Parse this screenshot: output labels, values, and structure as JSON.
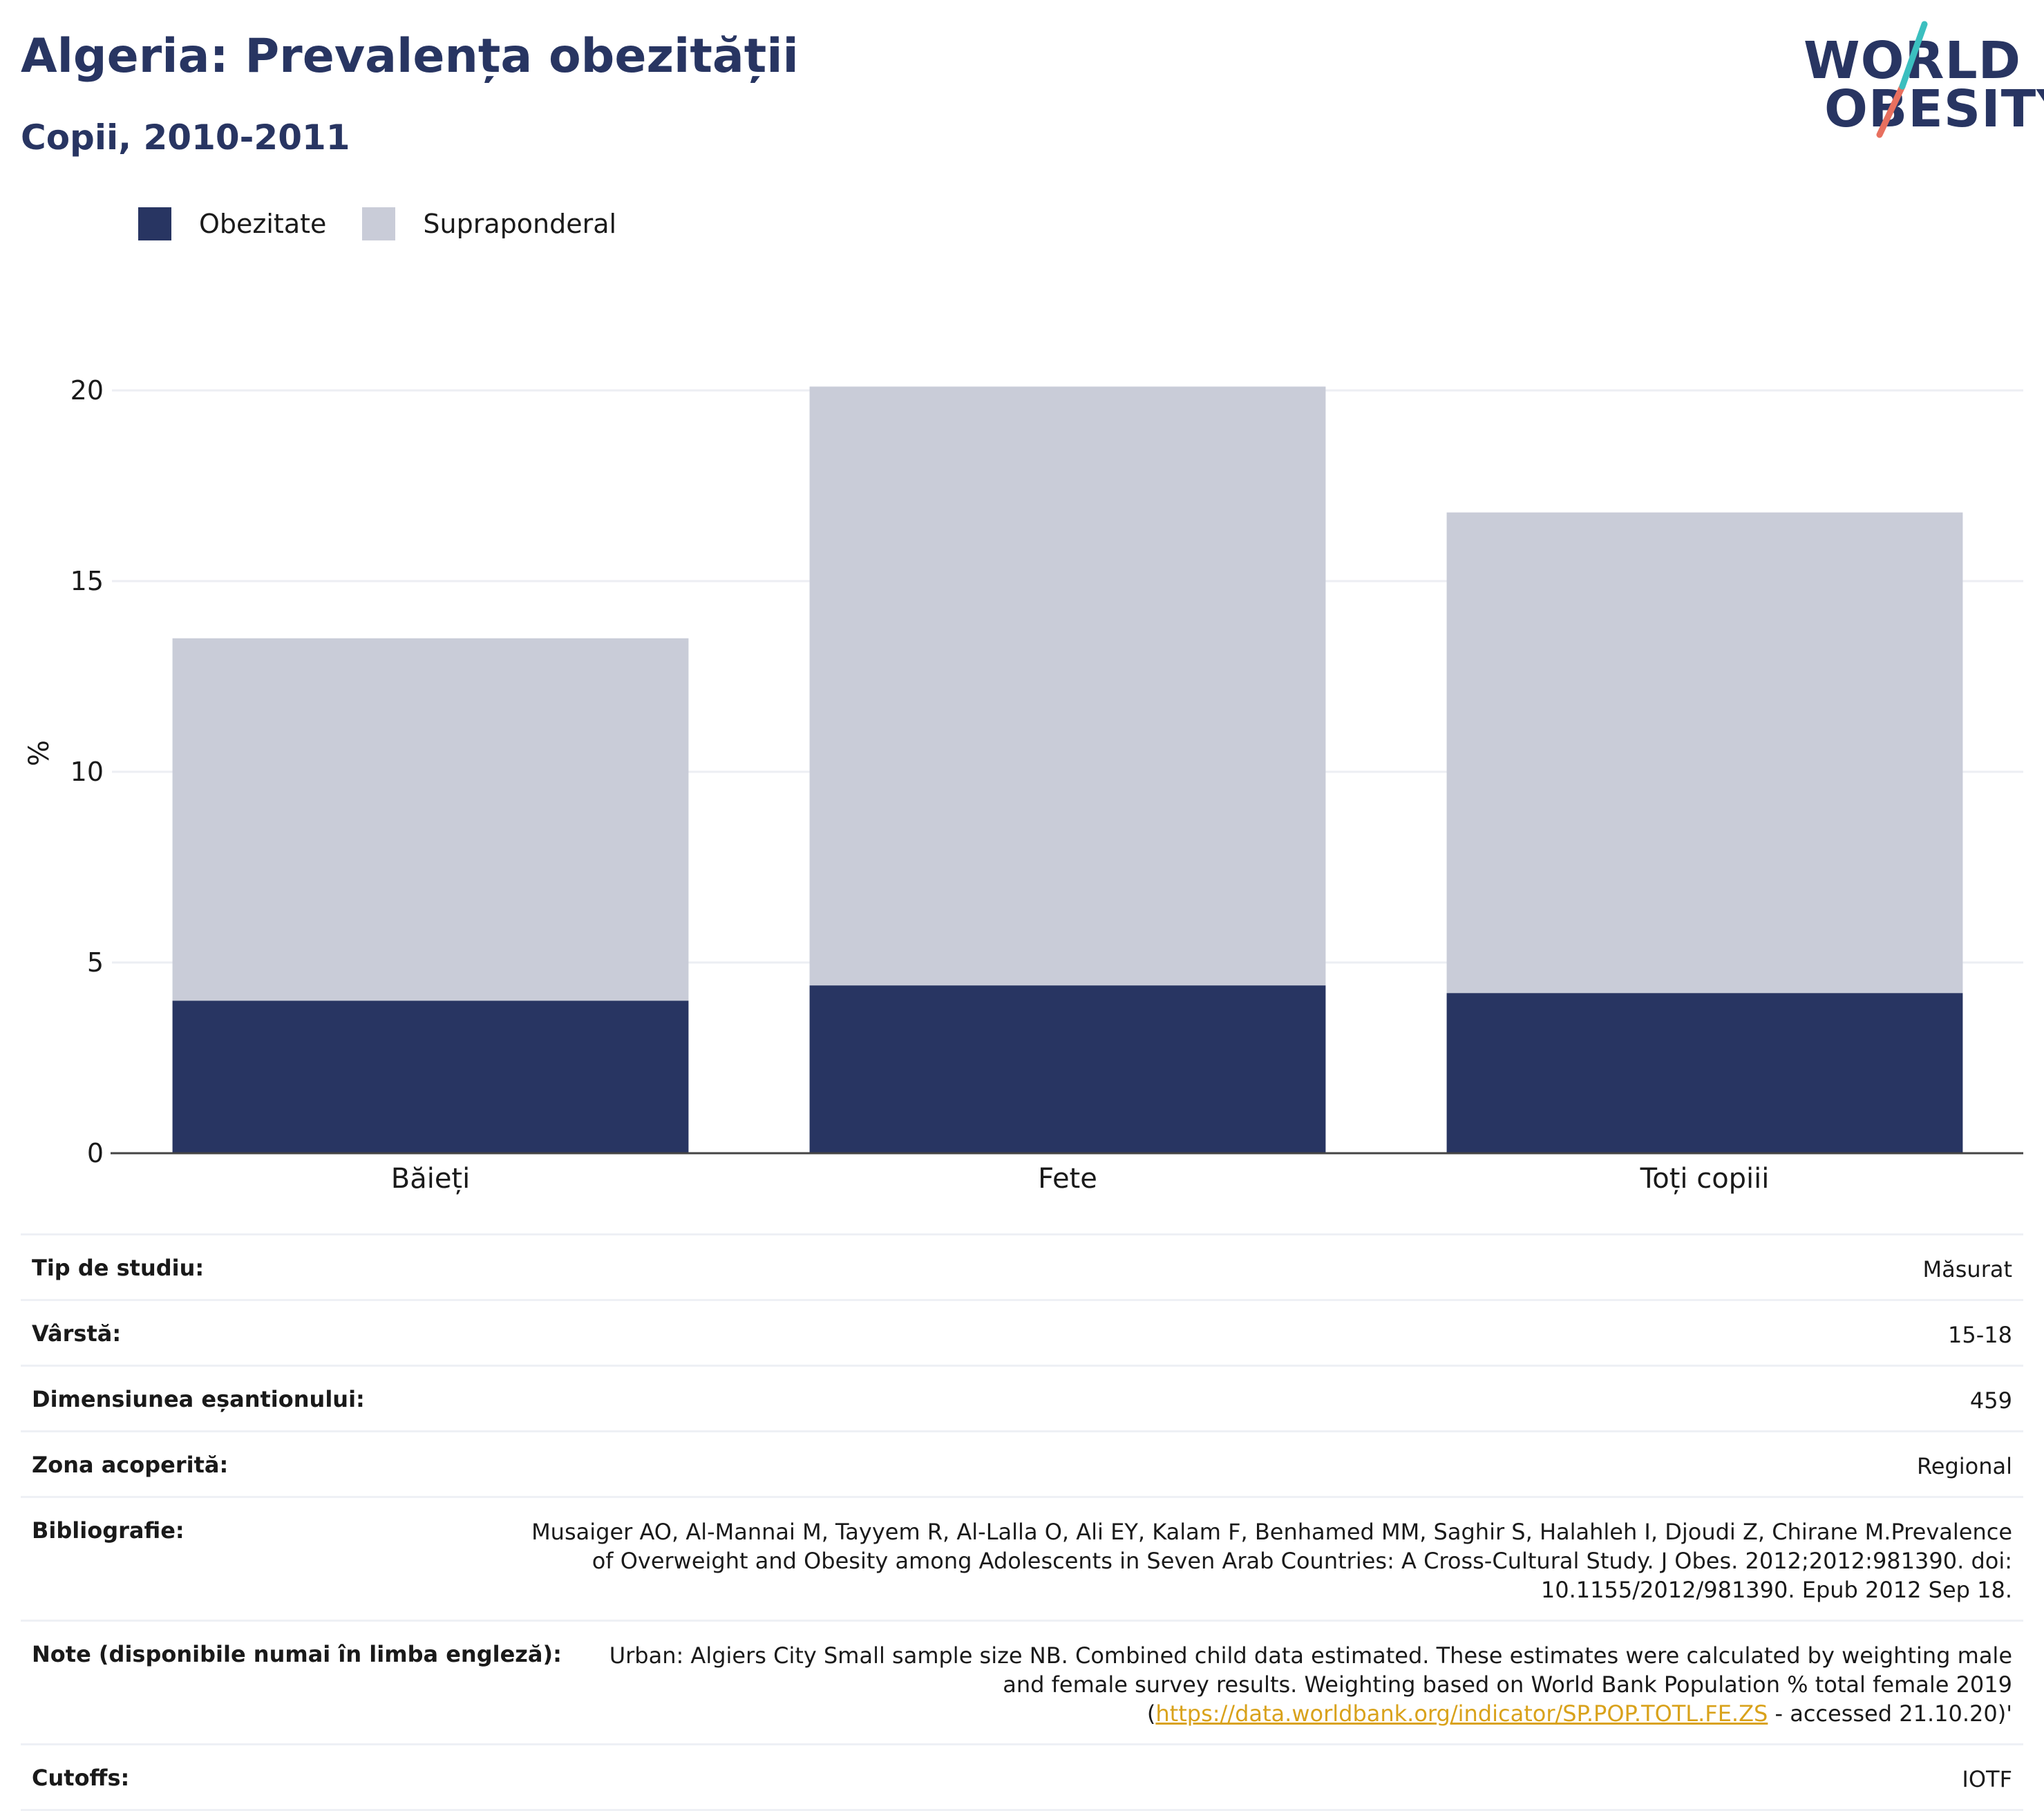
{
  "header": {
    "title": "Algeria: Prevalența obezității",
    "subtitle": "Copii, 2010-2011"
  },
  "logo": {
    "line1": "WORLD",
    "line2": "OBESITY",
    "colors": {
      "slash_top": "#3bbfbf",
      "slash_bottom": "#e8705f",
      "text": "#283562"
    }
  },
  "legend": [
    {
      "label": "Obezitate",
      "color": "#283562"
    },
    {
      "label": "Supraponderal",
      "color": "#c9ccd8"
    }
  ],
  "chart_data": {
    "type": "bar",
    "stacked": true,
    "categories": [
      "Băieți",
      "Fete",
      "Toți copiii"
    ],
    "series": [
      {
        "name": "Obezitate",
        "color": "#283562",
        "values": [
          4.0,
          4.4,
          4.2
        ]
      },
      {
        "name": "Supraponderal",
        "color": "#c9ccd8",
        "values": [
          9.5,
          15.7,
          12.6
        ]
      }
    ],
    "ylabel": "%",
    "ylim": [
      0,
      20
    ],
    "yticks": [
      0,
      5,
      10,
      15,
      20
    ],
    "grid": true,
    "legend_position": "top-left"
  },
  "info": {
    "rows": [
      {
        "label": "Tip de studiu:",
        "value": "Măsurat"
      },
      {
        "label": "Vârstă:",
        "value": "15-18"
      },
      {
        "label": "Dimensiunea eșantionului:",
        "value": "459"
      },
      {
        "label": "Zona acoperită:",
        "value": "Regional"
      },
      {
        "label": "Bibliografie:",
        "value": "Musaiger AO, Al-Mannai M, Tayyem R, Al-Lalla O, Ali EY, Kalam F, Benhamed MM, Saghir S, Halahleh I, Djoudi Z, Chirane M.Prevalence of Overweight and Obesity among Adolescents in Seven Arab Countries: A Cross-Cultural Study. J Obes. 2012;2012:981390. doi: 10.1155/2012/981390. Epub 2012 Sep 18."
      }
    ],
    "notes": {
      "label": "Note (disponibile numai în limba engleză):",
      "text": "Urban: Algiers City Small sample size NB. Combined child data estimated. These estimates were calculated by weighting male and female survey results. Weighting based on World Bank Population % total female 2019 (",
      "link": "https://data.worldbank.org/indicator/SP.POP.TOTL.FE.ZS",
      "suffix": " - accessed 21.10.20)'"
    },
    "cutoffs": {
      "label": "Cutoffs:",
      "value": "IOTF"
    }
  }
}
